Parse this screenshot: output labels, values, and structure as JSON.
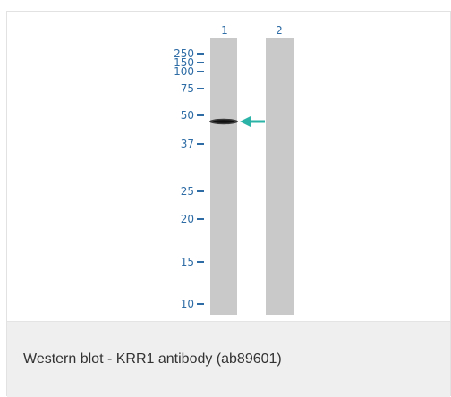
{
  "blot": {
    "lanes": [
      "1",
      "2"
    ],
    "markers": [
      "250",
      "150",
      "100",
      "75",
      "50",
      "37",
      "25",
      "20",
      "15",
      "10"
    ],
    "colors": {
      "lane": "#c9c9c9",
      "label": "#2e6ca5",
      "arrow": "#2bb3a7",
      "band": "#2a2a2a"
    }
  },
  "caption": {
    "text": "Western blot - KRR1 antibody (ab89601)"
  }
}
